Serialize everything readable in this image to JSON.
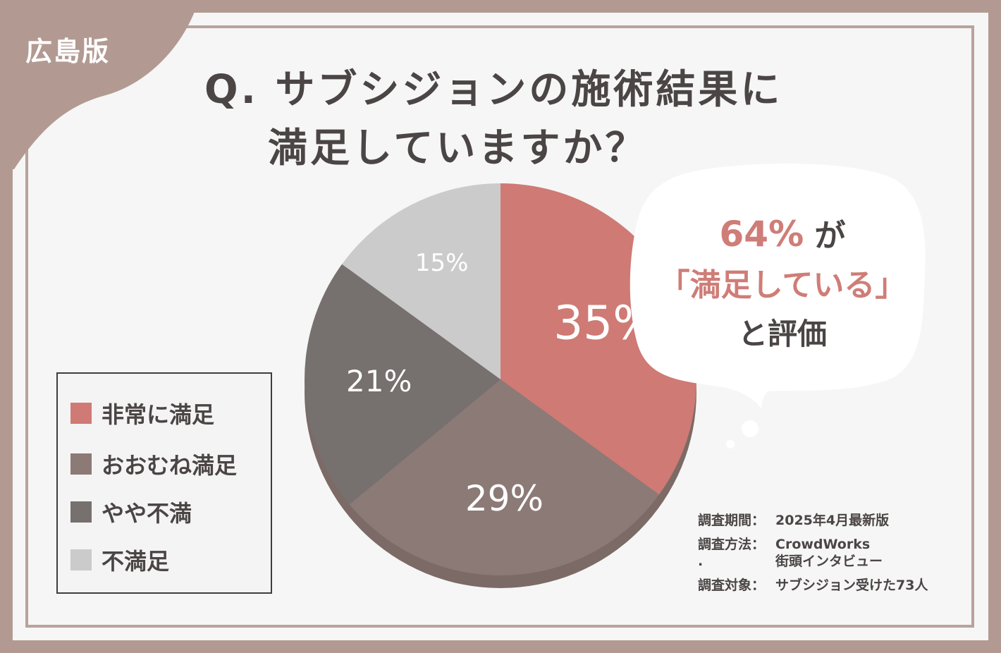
{
  "region_tag": "広島版",
  "title_line1": "Q. サブシジョンの施術結果に",
  "title_line2": "満足していますか？",
  "callout": {
    "percent": "64%",
    "particle": "が",
    "phrase": "「満足している」",
    "suffix": "と評価"
  },
  "chart_data": {
    "type": "pie",
    "categories": [
      "非常に満足",
      "おおむね満足",
      "やや不満",
      "不満足"
    ],
    "values": [
      35,
      29,
      21,
      15
    ],
    "value_labels": [
      "35%",
      "29%",
      "21%",
      "15%"
    ],
    "colors": [
      "#cf7a74",
      "#8c7a77",
      "#76706e",
      "#cccbcb"
    ],
    "legend": "bottom-left"
  },
  "survey": {
    "period_label": "調査期間：",
    "period_value": "2025年4月最新版",
    "method_label": "調査方法：",
    "method_value_1": "CrowdWorks",
    "method_value_2": "街頭インタビュー",
    "method_dot": ".",
    "target_label": "調査対象：",
    "target_value": "サブシジョン受けた73人"
  }
}
